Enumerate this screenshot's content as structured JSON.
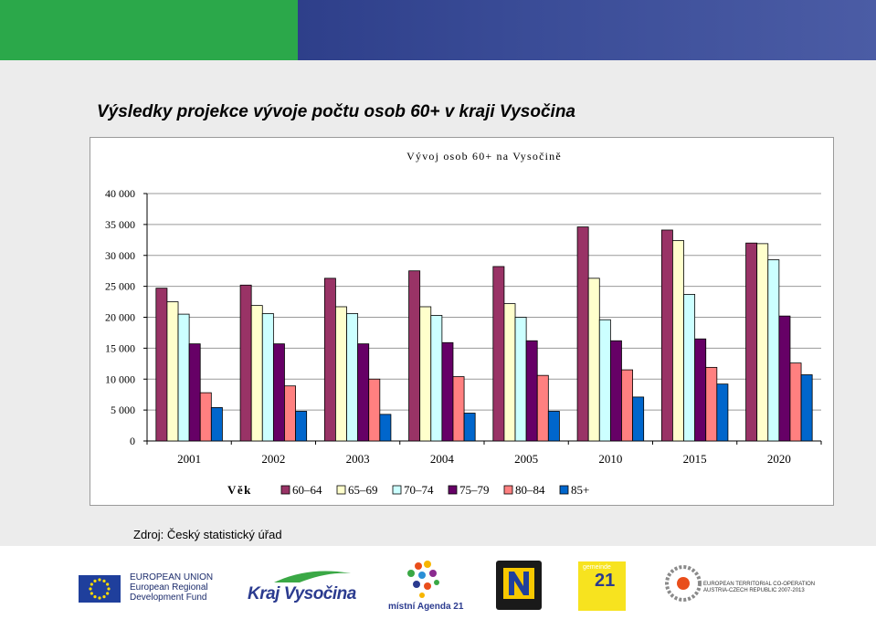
{
  "slide": {
    "title": "Výsledky projekce vývoje počtu osob 60+ v kraji Vysočina",
    "source": "Zdroj: Český statistický úřad"
  },
  "footer": {
    "eu_text": [
      "EUROPEAN UNION",
      "European Regional",
      "Development Fund"
    ],
    "kraj_logo": "Kraj Vysočina",
    "agenda_logo": "místní Agenda 21",
    "gemeinde_logo": [
      "gemeinde",
      "21"
    ],
    "etc_text": [
      "EUROPEAN TERRITORIAL CO-OPERATION",
      "AUSTRIA-CZECH REPUBLIC 2007-2013"
    ]
  },
  "colors": {
    "top_green": "#2ba84a",
    "top_blue": "#3a4c97"
  },
  "chart_data": {
    "type": "bar",
    "title": "Vývoj osob 60+ na Vysočině",
    "categories": [
      "2001",
      "2002",
      "2003",
      "2004",
      "2005",
      "2010",
      "2015",
      "2020"
    ],
    "legend_title": "Věk",
    "legend_position": "bottom",
    "ylim": [
      0,
      40000
    ],
    "yticks": [
      0,
      5000,
      10000,
      15000,
      20000,
      25000,
      30000,
      35000,
      40000
    ],
    "ytick_labels": [
      "0",
      "5 000",
      "10 000",
      "15 000",
      "20 000",
      "25 000",
      "30 000",
      "35 000",
      "40 000"
    ],
    "grid": true,
    "series": [
      {
        "name": "60–64",
        "color": "#993366",
        "values": [
          24700,
          25200,
          26300,
          27500,
          28200,
          34600,
          34100,
          32000
        ]
      },
      {
        "name": "65–69",
        "color": "#ffffcc",
        "values": [
          22500,
          21900,
          21700,
          21700,
          22200,
          26300,
          32400,
          31900
        ]
      },
      {
        "name": "70–74",
        "color": "#ccffff",
        "values": [
          20500,
          20600,
          20600,
          20300,
          20000,
          19600,
          23700,
          29300
        ]
      },
      {
        "name": "75–79",
        "color": "#660066",
        "values": [
          15700,
          15700,
          15700,
          15900,
          16200,
          16200,
          16500,
          20200
        ]
      },
      {
        "name": "80–84",
        "color": "#ff8080",
        "values": [
          7800,
          8900,
          10000,
          10400,
          10600,
          11500,
          11900,
          12600
        ]
      },
      {
        "name": "85+",
        "color": "#0066cc",
        "values": [
          5400,
          4800,
          4300,
          4500,
          4800,
          7100,
          9200,
          10700
        ]
      }
    ]
  }
}
